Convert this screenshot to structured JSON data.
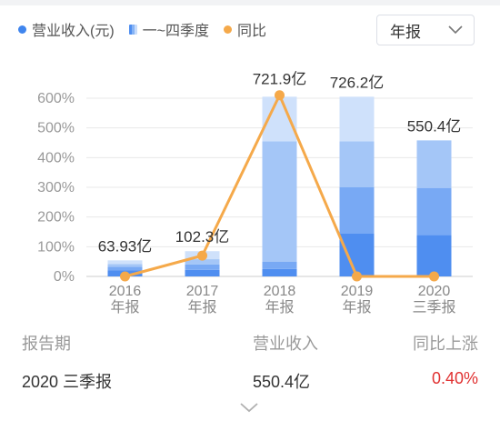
{
  "legend": {
    "revenue": "营业收入(元)",
    "quarters": "一~四季度",
    "yoy": "同比"
  },
  "period_select": {
    "value": "年报"
  },
  "colors": {
    "q1": "#4f8ef0",
    "q2": "#78a9f4",
    "q3": "#a4c6f7",
    "q4": "#cfe1fb",
    "line": "#f5a94a",
    "revenue_dot": "#3f85ee",
    "positive": "#e03131"
  },
  "chart_data": {
    "type": "bar",
    "categories": [
      [
        "2016",
        "年报"
      ],
      [
        "2017",
        "年报"
      ],
      [
        "2018",
        "年报"
      ],
      [
        "2019",
        "年报"
      ],
      [
        "2020",
        "三季报"
      ]
    ],
    "ylim": [
      0,
      600
    ],
    "yticks": [
      "0%",
      "100%",
      "200%",
      "300%",
      "400%",
      "500%",
      "600%"
    ],
    "grid": true,
    "series": [
      {
        "name": "一季度",
        "values": [
          20,
          22,
          25,
          145,
          140
        ]
      },
      {
        "name": "二季度",
        "values": [
          12,
          18,
          25,
          155,
          158
        ]
      },
      {
        "name": "三季度",
        "values": [
          10,
          18,
          405,
          155,
          160
        ]
      },
      {
        "name": "四季度",
        "values": [
          12,
          27,
          150,
          150,
          0
        ]
      }
    ],
    "line": {
      "name": "同比",
      "values": [
        0,
        70,
        610,
        0,
        0
      ]
    },
    "bar_labels": [
      "63.93亿",
      "102.3亿",
      "721.9亿",
      "726.2亿",
      "550.4亿"
    ]
  },
  "summary": {
    "headers": [
      "报告期",
      "营业收入",
      "同比上涨"
    ],
    "row": {
      "period": "2020 三季报",
      "revenue": "550.4亿",
      "growth": "0.40%"
    }
  }
}
